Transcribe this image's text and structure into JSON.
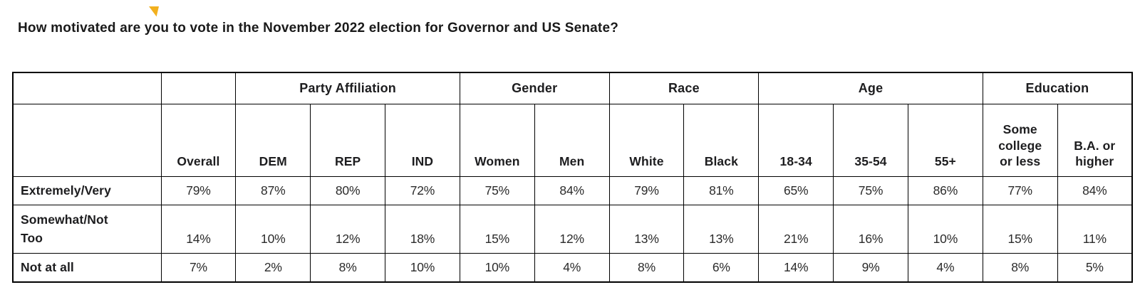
{
  "accent_color": "#F2B01E",
  "chart_data": {
    "type": "table",
    "title": "How motivated are you to vote in the November 2022 election for Governor and US Senate?",
    "column_groups": [
      {
        "label": "Party Affiliation",
        "span": 3
      },
      {
        "label": "Gender",
        "span": 2
      },
      {
        "label": "Race",
        "span": 2
      },
      {
        "label": "Age",
        "span": 3
      },
      {
        "label": "Education",
        "span": 2
      }
    ],
    "columns": [
      "Overall",
      "DEM",
      "REP",
      "IND",
      "Women",
      "Men",
      "White",
      "Black",
      "18-34",
      "35-54",
      "55+",
      "Some\ncollege\nor less",
      "B.A. or\nhigher"
    ],
    "rows": [
      {
        "label": "Extremely/Very",
        "values": [
          "79%",
          "87%",
          "80%",
          "72%",
          "75%",
          "84%",
          "79%",
          "81%",
          "65%",
          "75%",
          "86%",
          "77%",
          "84%"
        ]
      },
      {
        "label": "Somewhat/Not\nToo",
        "values": [
          "14%",
          "10%",
          "12%",
          "18%",
          "15%",
          "12%",
          "13%",
          "13%",
          "21%",
          "16%",
          "10%",
          "15%",
          "11%"
        ]
      },
      {
        "label": "Not at all",
        "values": [
          "7%",
          "2%",
          "8%",
          "10%",
          "10%",
          "4%",
          "8%",
          "6%",
          "14%",
          "9%",
          "4%",
          "8%",
          "5%"
        ]
      }
    ]
  }
}
